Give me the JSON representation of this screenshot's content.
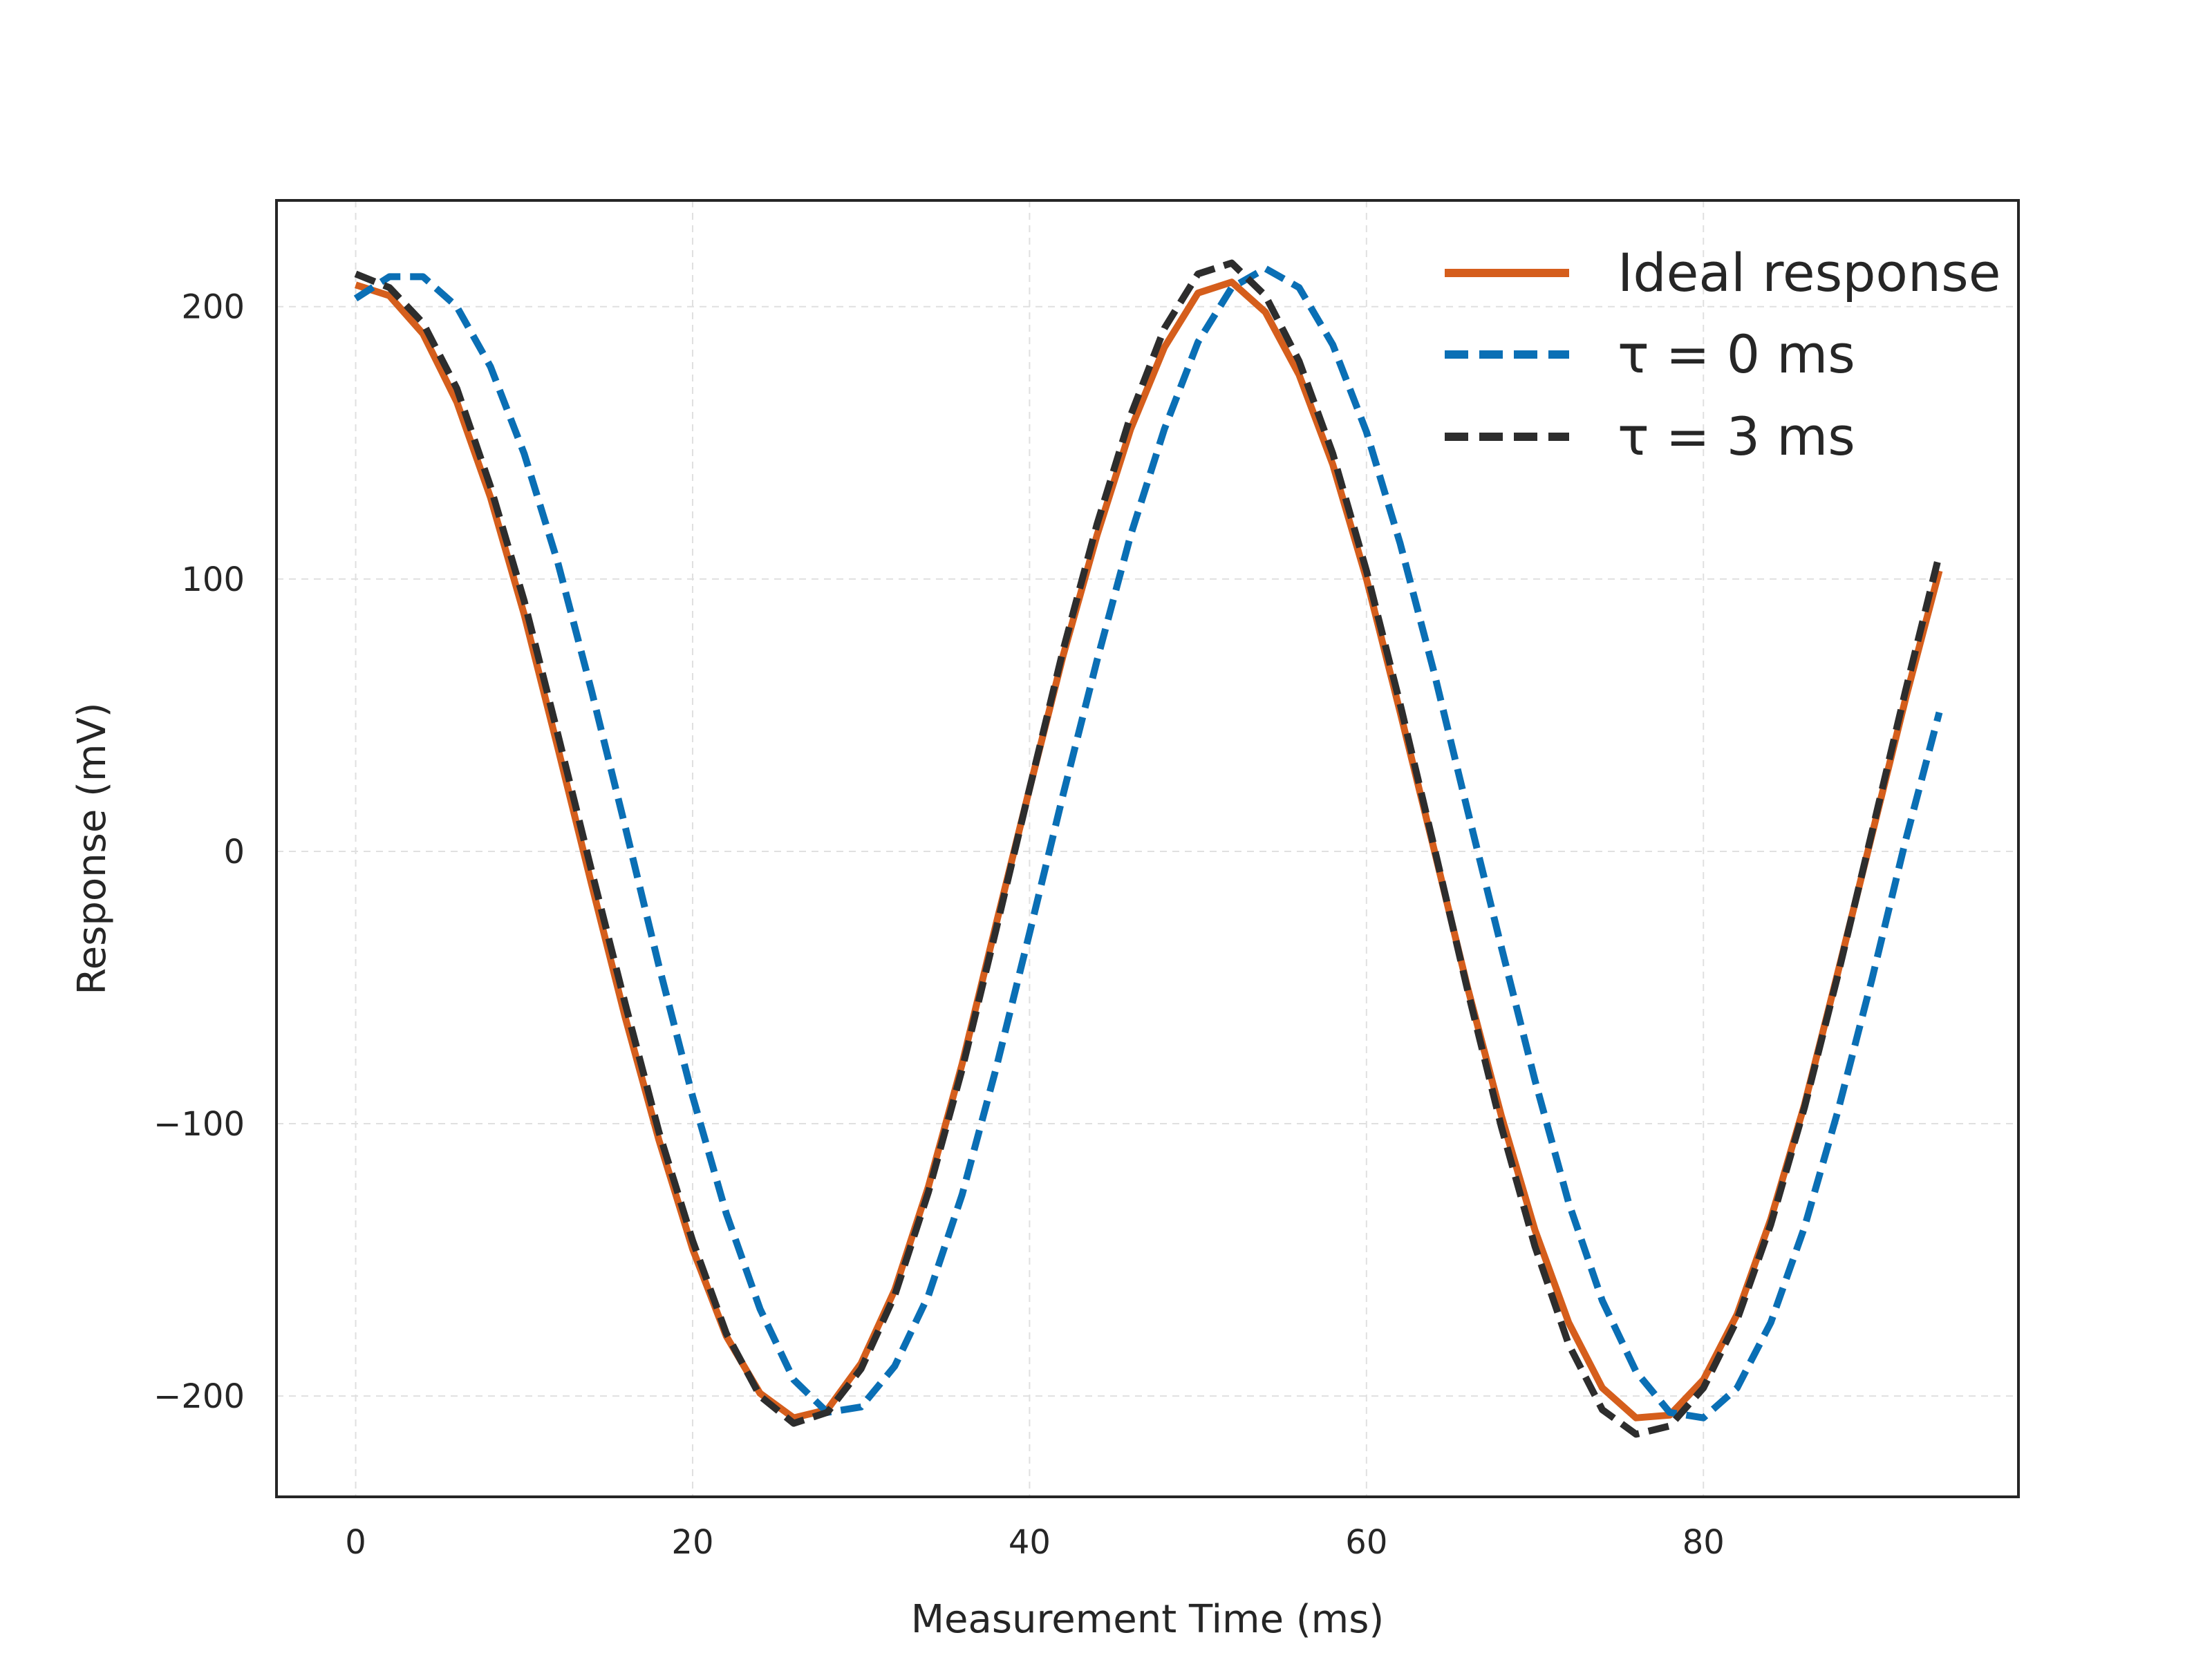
{
  "chart_data": {
    "type": "line",
    "title": "",
    "xlabel": "Measurement Time (ms)",
    "ylabel": "Response (mV)",
    "xlim": [
      -4.7,
      98.7
    ],
    "ylim": [
      -237,
      239
    ],
    "xticks": [
      0,
      20,
      40,
      60,
      80
    ],
    "yticks": [
      -200,
      -100,
      0,
      100,
      200
    ],
    "xtick_labels": [
      "0",
      "20",
      "40",
      "60",
      "80"
    ],
    "ytick_labels": [
      "−200",
      "−100",
      "0",
      "100",
      "200"
    ],
    "grid": true,
    "legend_position": "upper right",
    "x": [
      0,
      2,
      4,
      6,
      8,
      10,
      12,
      14,
      16,
      18,
      20,
      22,
      24,
      26,
      28,
      30,
      32,
      34,
      36,
      38,
      40,
      42,
      44,
      46,
      48,
      50,
      52,
      54,
      56,
      58,
      60,
      62,
      64,
      66,
      68,
      70,
      72,
      74,
      76,
      78,
      80,
      82,
      84,
      86,
      88,
      90,
      92,
      94
    ],
    "series": [
      {
        "name": "Ideal response",
        "color": "#d55e1c",
        "dash": "solid",
        "values": [
          208,
          204,
          190,
          165,
          130,
          87,
          38,
          -12,
          -61,
          -106,
          -146,
          -178,
          -199,
          -208,
          -205,
          -188,
          -161,
          -123,
          -78,
          -27,
          23,
          72,
          116,
          155,
          185,
          205,
          209,
          198,
          175,
          142,
          100,
          51,
          1,
          -50,
          -97,
          -139,
          -173,
          -197,
          -208,
          -207,
          -194,
          -170,
          -135,
          -93,
          -44,
          6,
          56,
          103
        ]
      },
      {
        "name": "τ = 0 ms",
        "color": "#0a6fb5",
        "dash": "dashed",
        "values": [
          203,
          211,
          211,
          200,
          178,
          146,
          106,
          59,
          9,
          -42,
          -90,
          -133,
          -168,
          -194,
          -206,
          -204,
          -189,
          -163,
          -126,
          -80,
          -30,
          21,
          70,
          116,
          155,
          187,
          207,
          214,
          207,
          186,
          154,
          113,
          66,
          15,
          -35,
          -84,
          -129,
          -165,
          -191,
          -206,
          -208,
          -197,
          -173,
          -138,
          -95,
          -47,
          4,
          51
        ]
      },
      {
        "name": "τ = 3 ms",
        "color": "#2d2d2d",
        "dash": "dashed",
        "values": [
          212,
          207,
          194,
          170,
          134,
          92,
          43,
          -7,
          -56,
          -103,
          -143,
          -177,
          -200,
          -210,
          -206,
          -190,
          -163,
          -125,
          -80,
          -29,
          23,
          74,
          120,
          160,
          192,
          212,
          216,
          204,
          180,
          146,
          103,
          54,
          2,
          -51,
          -101,
          -145,
          -181,
          -205,
          -214,
          -211,
          -197,
          -172,
          -137,
          -94,
          -45,
          7,
          59,
          109
        ]
      }
    ]
  }
}
